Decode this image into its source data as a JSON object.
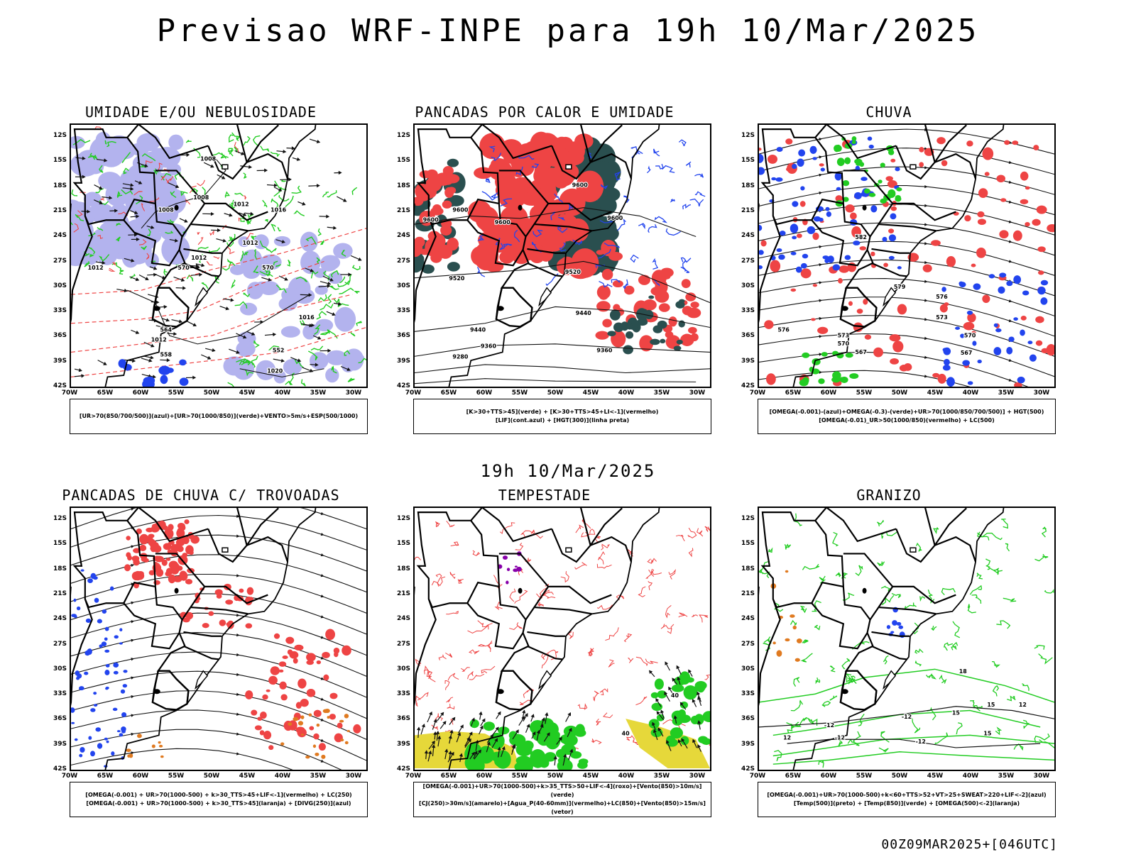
{
  "page": {
    "title": "Previsao WRF-INPE  para 19h 10/Mar/2025",
    "subtitle": "19h 10/Mar/2025",
    "footer": "00Z09MAR2025+[046UTC]"
  },
  "colors": {
    "humidity_blue": "#b3b3ee",
    "green": "#22cc22",
    "red": "#ee4444",
    "dark_teal": "#2a4f4f",
    "blue": "#2244ee",
    "orange": "#e07a20",
    "yellow": "#e6d83a",
    "purple": "#8800aa"
  },
  "axes": {
    "lat_labels": [
      "12S",
      "15S",
      "18S",
      "21S",
      "24S",
      "27S",
      "30S",
      "33S",
      "36S",
      "39S",
      "42S"
    ],
    "lon_labels": [
      "70W",
      "65W",
      "60W",
      "55W",
      "50W",
      "45W",
      "40W",
      "35W",
      "30W"
    ]
  },
  "chart_data": [
    {
      "type": "heatmap",
      "title": "UMIDADE E/OU NEBULOSIDADE",
      "legend_lines": [
        "[UR>70(850/700/500)](azul)+[UR>70(1000/850)](verde)+VENTO>5m/s+ESP(500/1000)"
      ],
      "xlim": [
        -70,
        -28
      ],
      "ylim": [
        -42,
        -10
      ],
      "contour_labels": [
        {
          "text": "1008",
          "lon": -50.5,
          "lat": -14.8
        },
        {
          "text": "1008",
          "lon": -51.5,
          "lat": -19.5
        },
        {
          "text": "1008",
          "lon": -56.5,
          "lat": -21
        },
        {
          "text": "1012",
          "lon": -45.8,
          "lat": -20.3
        },
        {
          "text": "1016",
          "lon": -40.5,
          "lat": -21
        },
        {
          "text": "1012",
          "lon": -51.8,
          "lat": -26.8
        },
        {
          "text": "1012",
          "lon": -44.5,
          "lat": -25
        },
        {
          "text": "1012",
          "lon": -66.5,
          "lat": -28
        },
        {
          "text": "1016",
          "lon": -36.5,
          "lat": -34
        },
        {
          "text": "1012",
          "lon": -57.5,
          "lat": -36.7
        },
        {
          "text": "1020",
          "lon": -41,
          "lat": -40.5
        },
        {
          "text": "570",
          "lon": -54,
          "lat": -28
        },
        {
          "text": "570",
          "lon": -42,
          "lat": -28
        },
        {
          "text": "564",
          "lon": -56.5,
          "lat": -35.5
        },
        {
          "text": "558",
          "lon": -56.5,
          "lat": -38.5
        },
        {
          "text": "552",
          "lon": -40.5,
          "lat": -38
        }
      ]
    },
    {
      "type": "heatmap",
      "title": "PANCADAS POR CALOR E UMIDADE",
      "legend_lines": [
        "[K>30+TTS>45](verde) + [K>30+TTS>45+LI<-1](vermelho)",
        "[LIF](cont.azul) + [HGT(300)](linha preta)"
      ],
      "xlim": [
        -70,
        -28
      ],
      "ylim": [
        -42,
        -10
      ],
      "contour_labels": [
        {
          "text": "9600",
          "lon": -67.7,
          "lat": -22.2
        },
        {
          "text": "9600",
          "lon": -63.5,
          "lat": -21
        },
        {
          "text": "9600",
          "lon": -57.5,
          "lat": -22.5
        },
        {
          "text": "9600",
          "lon": -46.5,
          "lat": -18
        },
        {
          "text": "9600",
          "lon": -41.5,
          "lat": -22
        },
        {
          "text": "9520",
          "lon": -64,
          "lat": -29.3
        },
        {
          "text": "9520",
          "lon": -47.5,
          "lat": -28.5
        },
        {
          "text": "9440",
          "lon": -61,
          "lat": -35.5
        },
        {
          "text": "9440",
          "lon": -46,
          "lat": -33.5
        },
        {
          "text": "9360",
          "lon": -59.5,
          "lat": -37.5
        },
        {
          "text": "9360",
          "lon": -43,
          "lat": -38
        },
        {
          "text": "9280",
          "lon": -63.5,
          "lat": -38.8
        }
      ]
    },
    {
      "type": "heatmap",
      "title": "CHUVA",
      "legend_lines": [
        "[OMEGA(-0.001)-(azul)+OMEGA(-0.3)-(verde)+UR>70(1000/850/700/500)] + HGT(500)",
        "[OMEGA(-0.01)_UR>50(1000/850)(vermelho) + LC(500)"
      ],
      "xlim": [
        -70,
        -28
      ],
      "ylim": [
        -42,
        -10
      ],
      "contour_labels": [
        {
          "text": "582",
          "lon": -55.5,
          "lat": -24.3
        },
        {
          "text": "579",
          "lon": -50,
          "lat": -30.3
        },
        {
          "text": "576",
          "lon": -44,
          "lat": -31.5
        },
        {
          "text": "576",
          "lon": -66.5,
          "lat": -35.5
        },
        {
          "text": "573",
          "lon": -44,
          "lat": -34
        },
        {
          "text": "573",
          "lon": -58,
          "lat": -36.2
        },
        {
          "text": "570",
          "lon": -40,
          "lat": -36.2
        },
        {
          "text": "570",
          "lon": -58,
          "lat": -37.2
        },
        {
          "text": "567",
          "lon": -55.5,
          "lat": -38.2
        },
        {
          "text": "567",
          "lon": -40.5,
          "lat": -38.3
        }
      ]
    },
    {
      "type": "heatmap",
      "title": "PANCADAS DE CHUVA C/ TROVOADAS",
      "legend_lines": [
        "[OMEGA(-0.001) + UR>70(1000-500) + k>30_TTS>45+LIF<-1](vermelho) + LC(250)",
        "[OMEGA(-0.001) + UR>70(1000-500) + k>30_TTS>45](laranja) + [DIVG(250)](azul)"
      ],
      "xlim": [
        -70,
        -28
      ],
      "ylim": [
        -42,
        -10
      ],
      "contour_labels": []
    },
    {
      "type": "heatmap",
      "title": "TEMPESTADE",
      "legend_lines": [
        "[OMEGA(-0.001)+UR>70(1000-500)+k>35_TTS>50+LIF<-4](roxo)+[Vento(850)>10m/s](verde)",
        "[CJ(250)>30m/s](amarelo)+[Agua_P(40-60mm)](vermelho)+LC(850)+[Vento(850)>15m/s](vetor)"
      ],
      "xlim": [
        -70,
        -28
      ],
      "ylim": [
        -42,
        -10
      ],
      "contour_labels": [
        {
          "text": "40",
          "lon": -33,
          "lat": -33.4
        },
        {
          "text": "40",
          "lon": -40,
          "lat": -38
        }
      ]
    },
    {
      "type": "heatmap",
      "title": "GRANIZO",
      "legend_lines": [
        "[OMEGA(-0.001)+UR>70(1000-500)+k<60+TTS>52+VT>25+SWEAT>220+LIF<-2](azul)",
        "[Temp(500)](preto) + [Temp(850)](verde) + [OMEGA(500)<-2](laranja)"
      ],
      "xlim": [
        -70,
        -28
      ],
      "ylim": [
        -42,
        -10
      ],
      "contour_labels": [
        {
          "text": "-12",
          "lon": -60,
          "lat": -37
        },
        {
          "text": "-12",
          "lon": -49,
          "lat": -36
        },
        {
          "text": "-12",
          "lon": -58.5,
          "lat": -38.5
        },
        {
          "text": "-12",
          "lon": -47,
          "lat": -39
        },
        {
          "text": "12",
          "lon": -66,
          "lat": -38.5
        },
        {
          "text": "15",
          "lon": -37,
          "lat": -34.5
        },
        {
          "text": "15",
          "lon": -37.5,
          "lat": -38
        },
        {
          "text": "15",
          "lon": -42,
          "lat": -35.5
        },
        {
          "text": "18",
          "lon": -41,
          "lat": -30.5
        },
        {
          "text": "12",
          "lon": -32.5,
          "lat": -34.5
        }
      ]
    }
  ]
}
